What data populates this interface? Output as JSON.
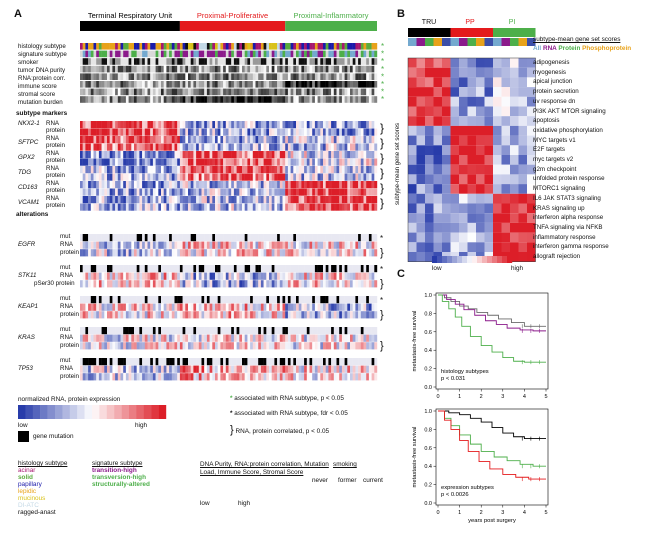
{
  "panel_labels": {
    "a": "A",
    "b": "B",
    "c": "C"
  },
  "panel_a": {
    "subtypes": [
      {
        "name": "Terminal Respiratory Unit",
        "color": "#000000"
      },
      {
        "name": "Proximal-Proliferative",
        "color": "#e41a1c"
      },
      {
        "name": "Proximal-Inflammatory",
        "color": "#4daf4a"
      }
    ],
    "track_labels": [
      "histology subtype",
      "signature subtype",
      "smoker",
      "tumor DNA purity",
      "RNA:protein corr.",
      "immune score",
      "stromal score",
      "mutation burden"
    ],
    "subtype_markers_title": "subtype markers",
    "genes": [
      {
        "name": "NKX2-1",
        "rows": [
          "RNA",
          "protein"
        ]
      },
      {
        "name": "SFTPC",
        "rows": [
          "RNA",
          "protein"
        ]
      },
      {
        "name": "GPX2",
        "rows": [
          "RNA",
          "protein"
        ]
      },
      {
        "name": "TDG",
        "rows": [
          "RNA",
          "protein"
        ]
      },
      {
        "name": "CD163",
        "rows": [
          "RNA",
          "protein"
        ]
      },
      {
        "name": "VCAM1",
        "rows": [
          "RNA",
          "protein"
        ]
      }
    ],
    "alterations_title": "alterations",
    "alterations": [
      {
        "name": "EGFR",
        "rows": [
          "mut",
          "RNA",
          "protein"
        ]
      },
      {
        "name": "STK11",
        "rows": [
          "mut",
          "RNA",
          "pSer30 protein"
        ]
      },
      {
        "name": "KEAP1",
        "rows": [
          "mut",
          "RNA",
          "protein"
        ]
      },
      {
        "name": "KRAS",
        "rows": [
          "mut",
          "RNA",
          "protein"
        ]
      },
      {
        "name": "TP53",
        "rows": [
          "mut",
          "RNA",
          "protein"
        ]
      }
    ],
    "legend": {
      "expr_title": "normalized RNA, protein expression",
      "low": "low",
      "high": "high",
      "gene_mutation": "gene mutation",
      "assoc_p": "associated with RNA subtype, p < 0.05",
      "assoc_fdr": "associated with RNA subtype, fdr < 0.05",
      "rna_prot": "RNA, protein correlated, p < 0.05",
      "histology_title": "histology subtype",
      "histology": [
        {
          "name": "acinar",
          "color": "#a6166f"
        },
        {
          "name": "solid",
          "color": "#5aab3c"
        },
        {
          "name": "papillary",
          "color": "#1a1aaa"
        },
        {
          "name": "lepidic",
          "color": "#e8a21a"
        },
        {
          "name": "mucinous",
          "color": "#d9c21a"
        },
        {
          "name": "DI-ATC",
          "color": "#c4d9e6"
        },
        {
          "name": "ragged-anast",
          "color": "#111111"
        }
      ],
      "signature_title": "signature subtype",
      "signature": [
        {
          "name": "transition-high",
          "color": "#8b1a8b"
        },
        {
          "name": "transversion-high",
          "color": "#4daf4a"
        },
        {
          "name": "structurally-altered",
          "color": "#4daf4a"
        }
      ],
      "purity_title": "DNA Purity, RNA:protein correlation, Mutation Load, Immune Score, Stromal Score",
      "purity_low": "low",
      "purity_high": "high",
      "smoking_title": "smoking",
      "smoking": [
        "never",
        "former",
        "current"
      ]
    }
  },
  "panel_b": {
    "groups": [
      {
        "name": "TRU",
        "color": "#000000"
      },
      {
        "name": "PP",
        "color": "#e41a1c"
      },
      {
        "name": "PI",
        "color": "#4daf4a"
      }
    ],
    "legend_title": "subtype-mean gene set scores",
    "legend_all": "All",
    "legend_rna": "RNA",
    "legend_protein": "Protein",
    "legend_phospho": "Phosphoprotein",
    "ylabel": "subtype-mean gene set scores",
    "gene_sets": [
      "adipogenesis",
      "myogenesis",
      "apical junction",
      "protein secretion",
      "uv response dn",
      "PI3K AKT MTOR signaling",
      "apoptosis",
      "oxidative phosphorylation",
      "MYC targets v1",
      "E2F targets",
      "myc targets v2",
      "g2m checkpoint",
      "unfolded protein response",
      "MTORC1 signaling",
      "IL6 JAK STAT3 signaling",
      "KRAS signaling up",
      "interferon alpha response",
      "TNFA signaling via NFKB",
      "inflammatory response",
      "interferon gamma response",
      "allograft rejection"
    ],
    "low": "low",
    "high": "high"
  },
  "panel_c": {
    "chart_data": [
      {
        "type": "line",
        "title": "",
        "annotation": "histology subtypes",
        "pvalue": "p < 0.031",
        "ylabel": "metastasis-free survival",
        "xlabel": "",
        "xlim": [
          0,
          5
        ],
        "ylim": [
          0,
          1
        ],
        "xticks": [
          "0",
          "1",
          "2",
          "3",
          "4",
          "5"
        ],
        "yticks": [
          "0.0",
          "0.2",
          "0.4",
          "0.6",
          "0.8",
          "1.0"
        ],
        "series": [
          {
            "color": "#6b6b6b",
            "x": [
              0,
              0.3,
              0.6,
              1.0,
              1.4,
              1.8,
              2.3,
              2.8,
              3.4,
              4.0,
              4.6,
              5.0
            ],
            "y": [
              1.0,
              0.97,
              0.93,
              0.88,
              0.85,
              0.81,
              0.78,
              0.74,
              0.7,
              0.66,
              0.66,
              0.66
            ]
          },
          {
            "color": "#8b1a8b",
            "x": [
              0,
              0.4,
              0.8,
              1.2,
              1.7,
              2.2,
              2.7,
              3.2,
              3.8,
              4.4,
              5.0
            ],
            "y": [
              1.0,
              0.95,
              0.9,
              0.84,
              0.78,
              0.72,
              0.68,
              0.64,
              0.62,
              0.61,
              0.61
            ]
          },
          {
            "color": "#4daf4a",
            "x": [
              0,
              0.2,
              0.5,
              0.8,
              1.1,
              1.5,
              2.0,
              2.5,
              3.0,
              3.5,
              4.0,
              5.0
            ],
            "y": [
              1.0,
              0.93,
              0.85,
              0.76,
              0.66,
              0.55,
              0.45,
              0.38,
              0.32,
              0.28,
              0.27,
              0.27
            ]
          }
        ]
      },
      {
        "type": "line",
        "title": "",
        "annotation": "expression subtypes",
        "pvalue": "p < 0.0026",
        "ylabel": "metastasis-free survival",
        "xlabel": "years post surgery",
        "xlim": [
          0,
          5
        ],
        "ylim": [
          0,
          1
        ],
        "xticks": [
          "0",
          "1",
          "2",
          "3",
          "4",
          "5"
        ],
        "yticks": [
          "0.0",
          "0.2",
          "0.4",
          "0.6",
          "0.8",
          "1.0"
        ],
        "series": [
          {
            "color": "#000000",
            "x": [
              0,
              0.5,
              1.0,
              1.5,
              2.0,
              2.5,
              3.0,
              3.5,
              4.0,
              5.0
            ],
            "y": [
              1.0,
              0.98,
              0.96,
              0.92,
              0.88,
              0.82,
              0.76,
              0.72,
              0.7,
              0.7
            ]
          },
          {
            "color": "#4daf4a",
            "x": [
              0,
              0.3,
              0.6,
              1.0,
              1.5,
              2.0,
              2.6,
              3.2,
              3.8,
              4.4,
              5.0
            ],
            "y": [
              1.0,
              0.92,
              0.84,
              0.74,
              0.64,
              0.56,
              0.5,
              0.46,
              0.42,
              0.4,
              0.4
            ]
          },
          {
            "color": "#e41a1c",
            "x": [
              0,
              0.3,
              0.6,
              1.0,
              1.4,
              1.9,
              2.4,
              3.0,
              3.6,
              4.2,
              5.0
            ],
            "y": [
              1.0,
              0.9,
              0.8,
              0.68,
              0.56,
              0.45,
              0.37,
              0.31,
              0.28,
              0.26,
              0.26
            ]
          }
        ]
      }
    ]
  }
}
